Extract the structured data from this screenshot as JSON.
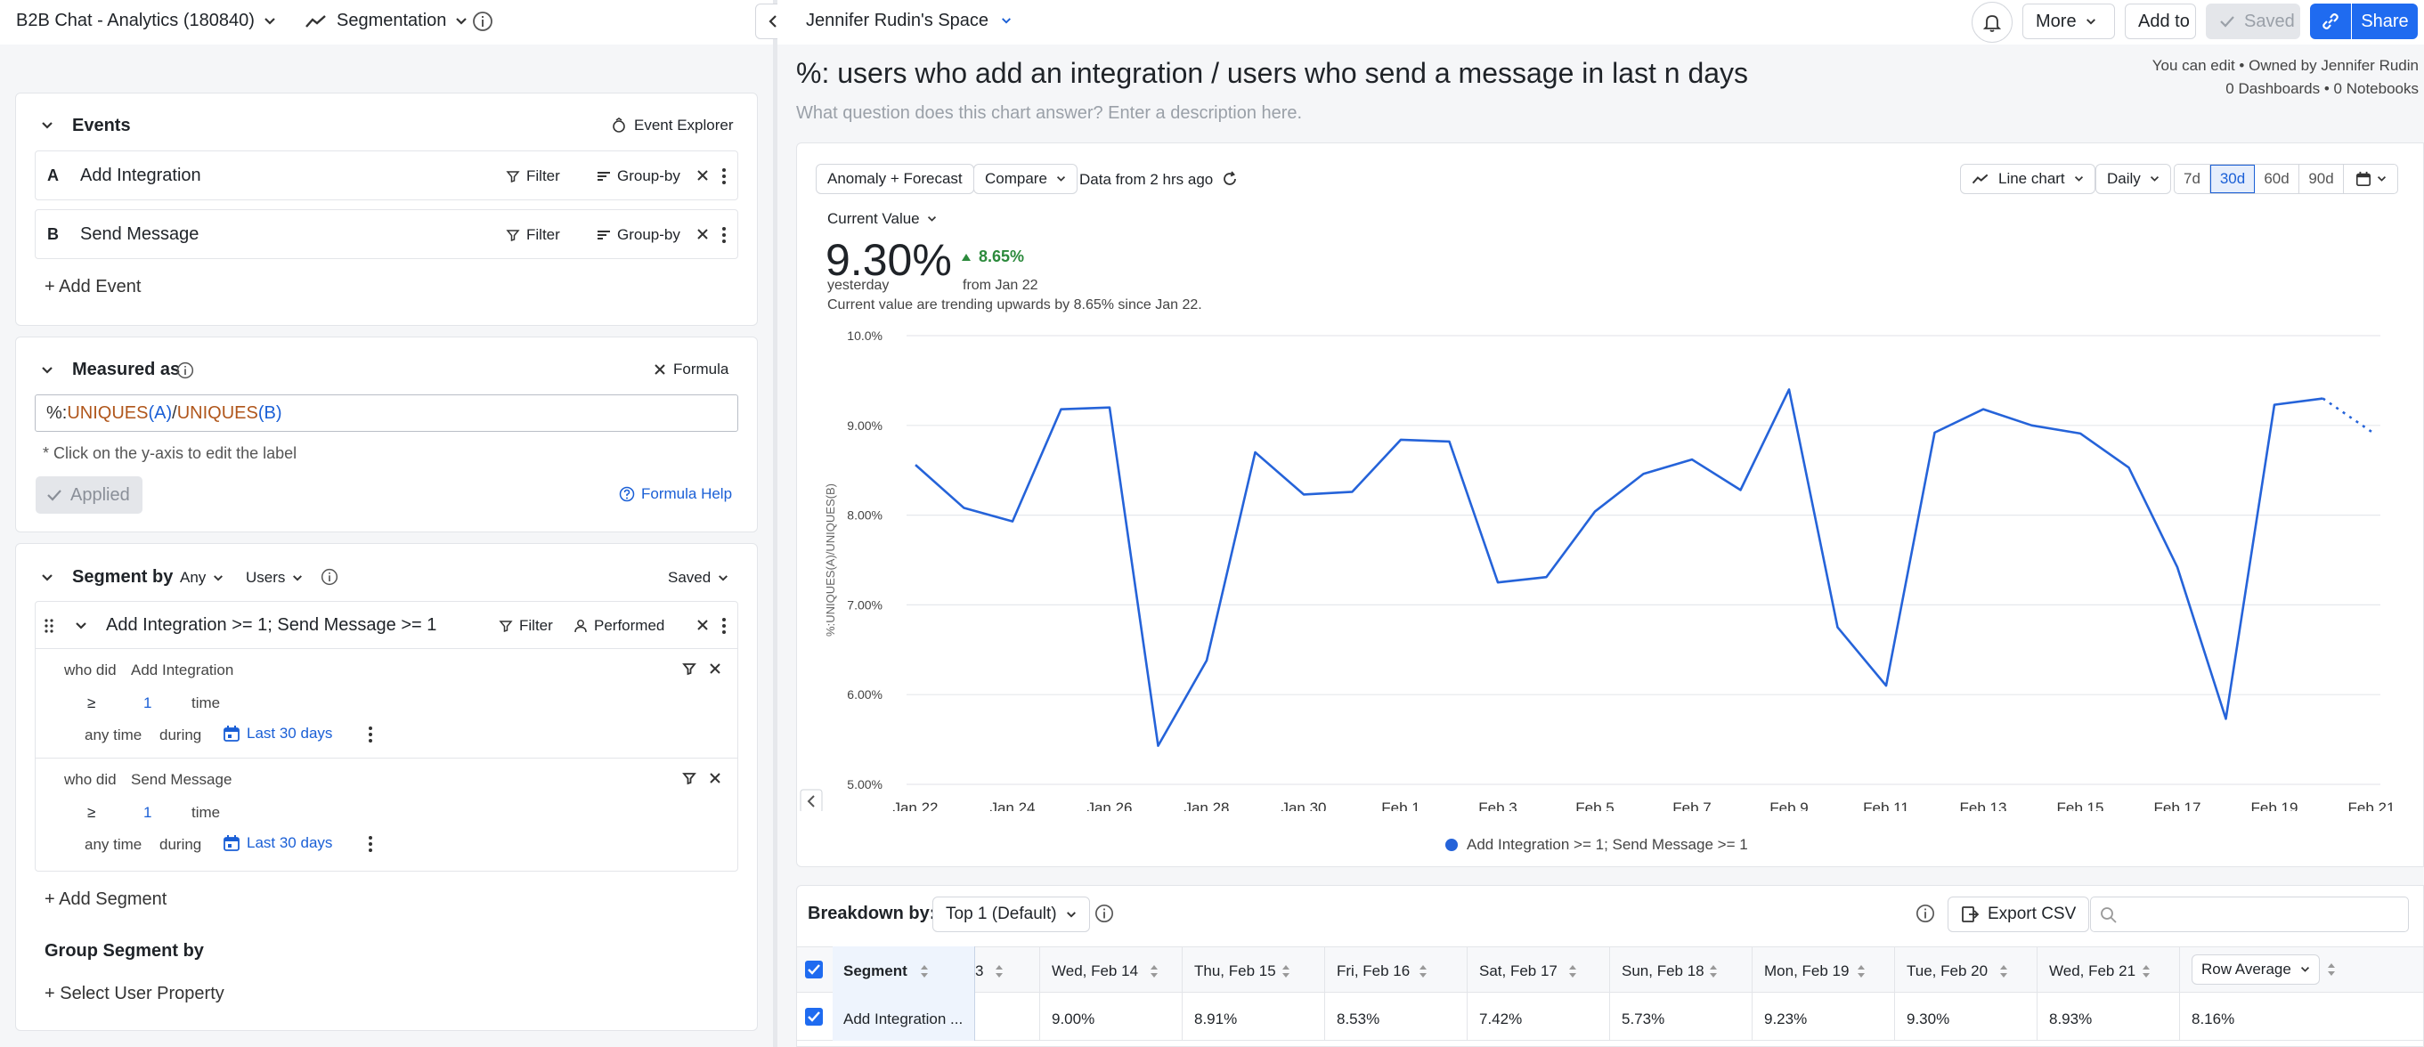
{
  "topbar": {
    "project": "B2B Chat - Analytics (180840)",
    "report_type": "Segmentation",
    "space": "Jennifer Rudin's Space",
    "more": "More",
    "add_to": "Add to",
    "saved": "Saved",
    "share": "Share"
  },
  "report": {
    "title": "%: users who add an integration / users who send a message in last n days",
    "description_placeholder": "What question does this chart answer? Enter a description here.",
    "permission": "You can edit • Owned by Jennifer Rudin",
    "counts": "0 Dashboards • 0 Notebooks"
  },
  "events_card": {
    "title": "Events",
    "explorer": "Event Explorer",
    "events": [
      {
        "letter": "A",
        "name": "Add Integration",
        "filter": "Filter",
        "groupby": "Group-by"
      },
      {
        "letter": "B",
        "name": "Send Message",
        "filter": "Filter",
        "groupby": "Group-by"
      }
    ],
    "add_event": "+ Add Event"
  },
  "measured": {
    "title": "Measured as",
    "formula_btn": "Formula",
    "formula_prefix": "%:",
    "formula_fn1": "UNIQUES",
    "formula_arg1": "(A)",
    "formula_slash": "/",
    "formula_fn2": "UNIQUES",
    "formula_arg2": "(B)",
    "hint": "* Click on the y-axis to edit the label",
    "applied": "Applied",
    "help": "Formula Help"
  },
  "segment": {
    "title": "Segment by",
    "any": "Any",
    "users": "Users",
    "saved": "Saved",
    "name": "Add Integration >= 1; Send Message >= 1",
    "filter": "Filter",
    "performed": "Performed",
    "conditions": [
      {
        "who_did": "who did",
        "event": "Add Integration",
        "op": "≥",
        "count": "1",
        "unit": "time",
        "anytime": "any time",
        "during": "during",
        "range": "Last 30 days"
      },
      {
        "who_did": "who did",
        "event": "Send Message",
        "op": "≥",
        "count": "1",
        "unit": "time",
        "anytime": "any time",
        "during": "during",
        "range": "Last 30 days"
      }
    ],
    "add_segment": "+ Add Segment",
    "group_title": "Group Segment by",
    "select_prop": "+ Select User Property"
  },
  "toolbar": {
    "anomaly": "Anomaly + Forecast",
    "compare": "Compare",
    "data_age": "Data from 2 hrs ago",
    "chart_type": "Line chart",
    "interval": "Daily",
    "ranges": [
      "7d",
      "30d",
      "60d",
      "90d"
    ],
    "active_range": "30d"
  },
  "summary": {
    "label": "Current Value",
    "value": "9.30%",
    "value_sub": "yesterday",
    "delta": "8.65%",
    "delta_sub": "from Jan 22",
    "trend": "Current value are trending upwards by 8.65% since Jan 22."
  },
  "chart_data": {
    "type": "line",
    "ylabel": "%:UNIQUES(A)/UNIQUES(B)",
    "ylim": [
      5.0,
      10.0
    ],
    "y_ticks": [
      "5.00%",
      "6.00%",
      "7.00%",
      "8.00%",
      "9.00%",
      "10.0%"
    ],
    "x_ticks": [
      "Jan 22",
      "Jan 24",
      "Jan 26",
      "Jan 28",
      "Jan 30",
      "Feb 1",
      "Feb 3",
      "Feb 5",
      "Feb 7",
      "Feb 9",
      "Feb 11",
      "Feb 13",
      "Feb 15",
      "Feb 17",
      "Feb 19",
      "Feb 21"
    ],
    "x": [
      "Jan 22",
      "Jan 23",
      "Jan 24",
      "Jan 25",
      "Jan 26",
      "Jan 27",
      "Jan 28",
      "Jan 29",
      "Jan 30",
      "Jan 31",
      "Feb 1",
      "Feb 2",
      "Feb 3",
      "Feb 4",
      "Feb 5",
      "Feb 6",
      "Feb 7",
      "Feb 8",
      "Feb 9",
      "Feb 10",
      "Feb 11",
      "Feb 12",
      "Feb 13",
      "Feb 14",
      "Feb 15",
      "Feb 16",
      "Feb 17",
      "Feb 18",
      "Feb 19",
      "Feb 20",
      "Feb 21"
    ],
    "series": [
      {
        "name": "Add Integration >= 1; Send Message >= 1",
        "color": "#2563d9",
        "values": [
          8.56,
          8.08,
          7.93,
          9.18,
          9.2,
          5.43,
          6.38,
          8.7,
          8.23,
          8.26,
          8.84,
          8.82,
          7.25,
          7.31,
          8.04,
          8.46,
          8.62,
          8.28,
          9.4,
          6.75,
          6.1,
          8.92,
          9.18,
          9.0,
          8.91,
          8.53,
          7.42,
          5.73,
          9.23,
          9.3,
          8.93
        ],
        "projected_from_index": 29
      }
    ],
    "legend": "bottom",
    "grid": true
  },
  "breakdown": {
    "label": "Breakdown by:",
    "value": "Top 1 (Default)",
    "export": "Export CSV",
    "columns": [
      "Segment",
      "3",
      "Wed, Feb 14",
      "Thu, Feb 15",
      "Fri, Feb 16",
      "Sat, Feb 17",
      "Sun, Feb 18",
      "Mon, Feb 19",
      "Tue, Feb 20",
      "Wed, Feb 21",
      "Row Average"
    ],
    "row": [
      "Add Integration ...",
      "",
      "9.00%",
      "8.91%",
      "8.53%",
      "7.42%",
      "5.73%",
      "9.23%",
      "9.30%",
      "8.93%",
      "8.16%"
    ]
  }
}
